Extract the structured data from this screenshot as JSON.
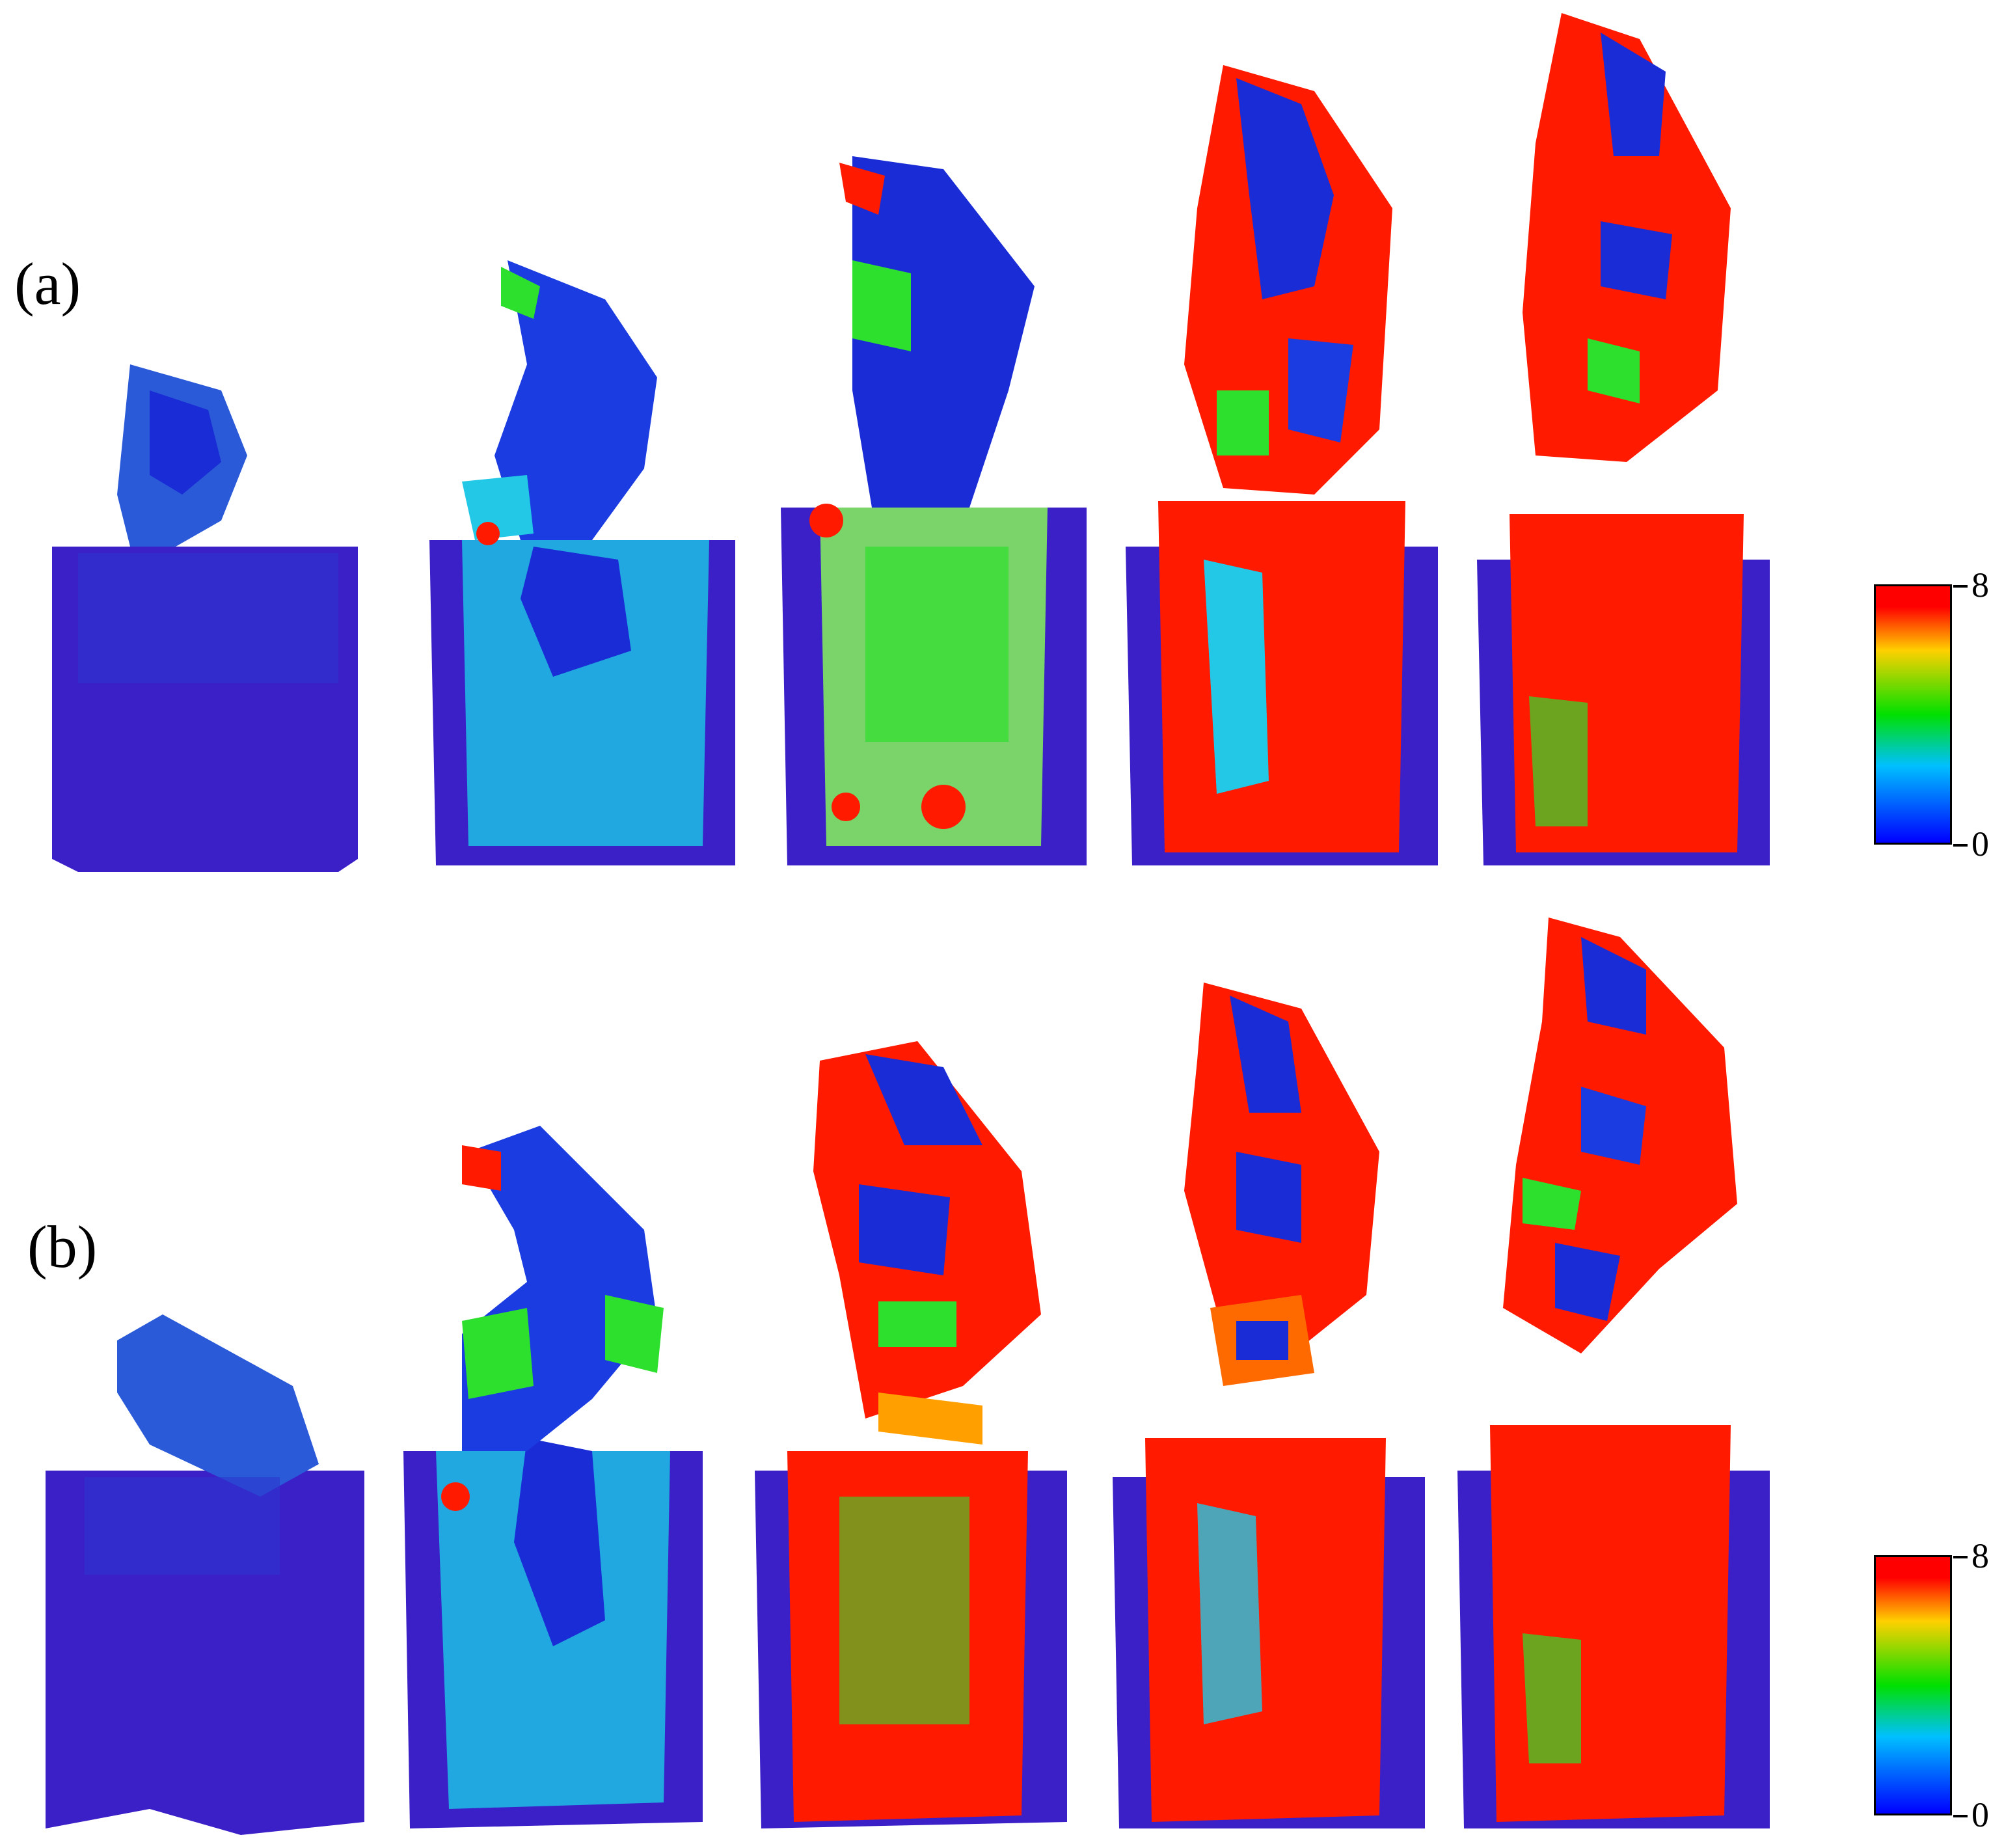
{
  "panels": [
    {
      "label": "(a)",
      "colorbar": {
        "max": "8",
        "min": "0"
      }
    },
    {
      "label": "(b)",
      "colorbar": {
        "max": "8",
        "min": "0"
      }
    }
  ],
  "colors": {
    "low": "#1a2cd6",
    "mid": "#22c8e6",
    "green": "#2ee02e",
    "high": "#ff1a00",
    "deep": "#3b20c8"
  }
}
